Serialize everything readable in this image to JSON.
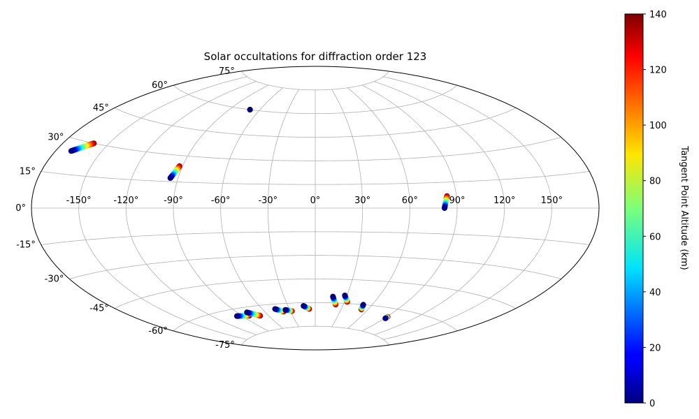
{
  "chart_data": {
    "type": "scatter",
    "projection": "aitoff",
    "title": "Solar occultations for diffraction order 123",
    "grid": true,
    "x_tick_labels": [
      {
        "value": -150,
        "label": "-150°"
      },
      {
        "value": -120,
        "label": "-120°"
      },
      {
        "value": -90,
        "label": "-90°"
      },
      {
        "value": -60,
        "label": "-60°"
      },
      {
        "value": -30,
        "label": "-30°"
      },
      {
        "value": 0,
        "label": "0°"
      },
      {
        "value": 30,
        "label": "30°"
      },
      {
        "value": 60,
        "label": "60°"
      },
      {
        "value": 90,
        "label": "90°"
      },
      {
        "value": 120,
        "label": "120°"
      },
      {
        "value": 150,
        "label": "150°"
      }
    ],
    "y_tick_labels": [
      {
        "value": 75,
        "label": "75°"
      },
      {
        "value": 60,
        "label": "60°"
      },
      {
        "value": 45,
        "label": "45°"
      },
      {
        "value": 30,
        "label": "30°"
      },
      {
        "value": 15,
        "label": "15°"
      },
      {
        "value": 0,
        "label": "0°"
      },
      {
        "value": -15,
        "label": "-15°"
      },
      {
        "value": -30,
        "label": "-30°"
      },
      {
        "value": -45,
        "label": "-45°"
      },
      {
        "value": -60,
        "label": "-60°"
      },
      {
        "value": -75,
        "label": "-75°"
      }
    ],
    "colorbar": {
      "label": "Tangent Point Altitude (km)",
      "colormap": "jet",
      "range": [
        0,
        140
      ],
      "ticks": [
        {
          "value": 0,
          "label": "0"
        },
        {
          "value": 20,
          "label": "20"
        },
        {
          "value": 40,
          "label": "40"
        },
        {
          "value": 60,
          "label": "60"
        },
        {
          "value": 80,
          "label": "80"
        },
        {
          "value": 100,
          "label": "100"
        },
        {
          "value": 120,
          "label": "120"
        },
        {
          "value": 140,
          "label": "140"
        }
      ]
    },
    "tracks": [
      {
        "start": {
          "lon": -170,
          "lat": 25
        },
        "end": {
          "lon": -160,
          "lat": 30
        }
      },
      {
        "start": {
          "lon": -95,
          "lat": 17
        },
        "end": {
          "lon": -92,
          "lat": 24
        }
      },
      {
        "start": {
          "lon": -70,
          "lat": 60
        },
        "end": {
          "lon": -70,
          "lat": 60
        }
      },
      {
        "start": {
          "lon": 82,
          "lat": 0
        },
        "end": {
          "lon": 84,
          "lat": 7
        }
      },
      {
        "start": {
          "lon": -96,
          "lat": -64
        },
        "end": {
          "lon": -82,
          "lat": -65
        }
      },
      {
        "start": {
          "lon": -80,
          "lat": -63
        },
        "end": {
          "lon": -70,
          "lat": -66
        }
      },
      {
        "start": {
          "lon": -46,
          "lat": -63
        },
        "end": {
          "lon": -38,
          "lat": -65
        }
      },
      {
        "start": {
          "lon": -35,
          "lat": -64
        },
        "end": {
          "lon": -28,
          "lat": -65
        }
      },
      {
        "start": {
          "lon": -13,
          "lat": -62
        },
        "end": {
          "lon": -7,
          "lat": -64
        }
      },
      {
        "start": {
          "lon": 17,
          "lat": -56
        },
        "end": {
          "lon": 22,
          "lat": -61
        }
      },
      {
        "start": {
          "lon": 28,
          "lat": -55
        },
        "end": {
          "lon": 33,
          "lat": -59
        }
      },
      {
        "start": {
          "lon": 51,
          "lat": -60
        },
        "end": {
          "lon": 53,
          "lat": -63
        }
      },
      {
        "start": {
          "lon": 91,
          "lat": -66
        },
        "end": {
          "lon": 91,
          "lat": -65
        }
      }
    ],
    "altitude_range_per_track": [
      0,
      140
    ]
  }
}
